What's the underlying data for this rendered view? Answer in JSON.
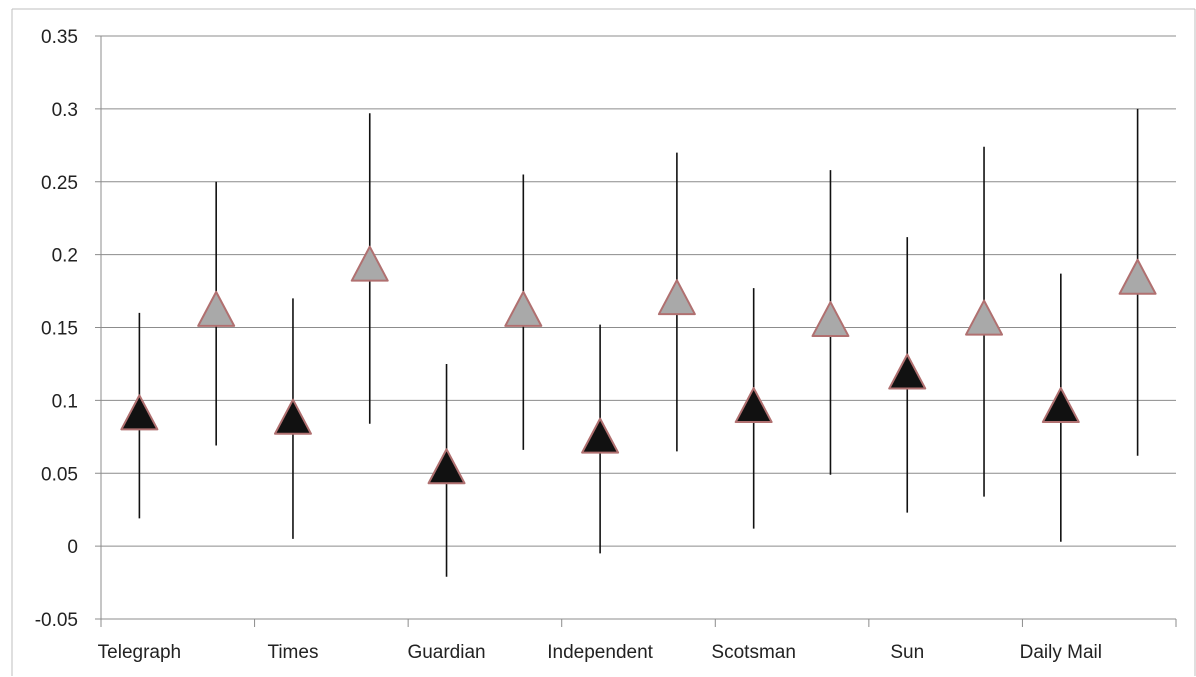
{
  "chart_data": {
    "type": "scatter",
    "title": "",
    "xlabel": "",
    "ylabel": "",
    "ylim": [
      -0.05,
      0.35
    ],
    "y_ticks": [
      "0.35",
      "0.3",
      "0.25",
      "0.2",
      "0.15",
      "0.1",
      "0.05",
      "0",
      "-0.05"
    ],
    "grid": "horizontal",
    "legend": "none",
    "categories": [
      "Telegraph",
      "Times",
      "Guardian",
      "Independent",
      "Scotsman",
      "Sun",
      "Daily Mail"
    ],
    "series": [
      {
        "marker": "triangle",
        "color": "#111111",
        "values": [
          0.089,
          0.086,
          0.052,
          0.073,
          0.094,
          0.117,
          0.094
        ],
        "error_low": [
          0.019,
          0.005,
          -0.021,
          -0.005,
          0.012,
          0.023,
          0.003
        ],
        "error_high": [
          0.16,
          0.17,
          0.125,
          0.152,
          0.177,
          0.212,
          0.187
        ]
      },
      {
        "marker": "triangle",
        "color": "#a9a9a9",
        "values": [
          0.16,
          0.191,
          0.16,
          0.168,
          0.153,
          0.154,
          0.182
        ],
        "error_low": [
          0.069,
          0.084,
          0.066,
          0.065,
          0.049,
          0.034,
          0.062
        ],
        "error_high": [
          0.25,
          0.297,
          0.255,
          0.27,
          0.258,
          0.274,
          0.3
        ]
      }
    ]
  }
}
